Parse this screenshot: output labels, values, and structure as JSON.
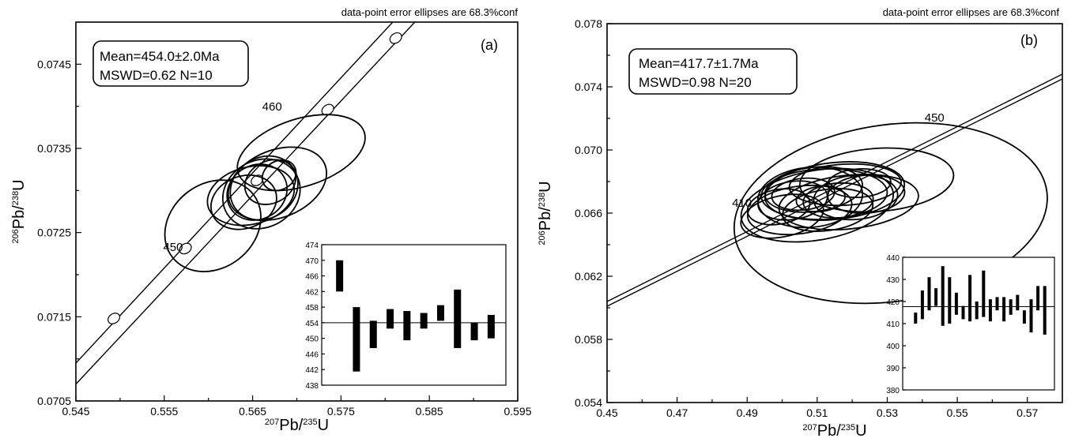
{
  "chart_data": [
    {
      "panel_label": "(a)",
      "type": "scatter",
      "subtype": "concordia-error-ellipses",
      "header_note": "data-point error ellipses are 68.3%conf",
      "xlabel_sup": "207",
      "xlabel_main": "Pb/",
      "xlabel_sup2": "235",
      "xlabel_tail": "U",
      "ylabel_sup": "206",
      "ylabel_main": "Pb/",
      "ylabel_sup2": "238",
      "ylabel_tail": "U",
      "xlim": [
        0.545,
        0.595
      ],
      "ylim": [
        0.0705,
        0.075
      ],
      "xticks": [
        "0.545",
        "0.555",
        "0.565",
        "0.575",
        "0.585",
        "0.595"
      ],
      "yticks": [
        "0.0705",
        "0.0715",
        "0.0725",
        "0.0735",
        "0.0745"
      ],
      "result_line1": "Mean=454.0±2.0Ma",
      "result_line2": "MSWD=0.62   N=10",
      "age_labels": [
        {
          "text": "460",
          "x": 0.5672,
          "y": 0.07395
        },
        {
          "text": "450",
          "x": 0.556,
          "y": 0.07228
        }
      ],
      "concordia_markers": [
        {
          "x": 0.5493,
          "y": 0.07148
        },
        {
          "x": 0.5574,
          "y": 0.07231
        },
        {
          "x": 0.5655,
          "y": 0.07312
        },
        {
          "x": 0.5735,
          "y": 0.07396
        },
        {
          "x": 0.5812,
          "y": 0.07481
        }
      ],
      "ellipses": [
        {
          "cx": 0.5605,
          "cy": 0.07258,
          "rx": 0.0058,
          "ry": 0.0005,
          "angle_deg": 38
        },
        {
          "cx": 0.5655,
          "cy": 0.07298,
          "rx": 0.0035,
          "ry": 0.00032,
          "angle_deg": 30
        },
        {
          "cx": 0.5663,
          "cy": 0.07303,
          "rx": 0.004,
          "ry": 0.00036,
          "angle_deg": 34
        },
        {
          "cx": 0.5678,
          "cy": 0.07308,
          "rx": 0.0058,
          "ry": 0.0004,
          "angle_deg": 22
        },
        {
          "cx": 0.5648,
          "cy": 0.07294,
          "rx": 0.005,
          "ry": 0.00034,
          "angle_deg": 14
        },
        {
          "cx": 0.567,
          "cy": 0.0731,
          "rx": 0.003,
          "ry": 0.00025,
          "angle_deg": 28
        },
        {
          "cx": 0.568,
          "cy": 0.07318,
          "rx": 0.002,
          "ry": 0.00017,
          "angle_deg": 30
        },
        {
          "cx": 0.564,
          "cy": 0.07286,
          "rx": 0.0038,
          "ry": 0.00031,
          "angle_deg": 20
        },
        {
          "cx": 0.566,
          "cy": 0.07296,
          "rx": 0.0045,
          "ry": 0.0004,
          "angle_deg": 26
        },
        {
          "cx": 0.5705,
          "cy": 0.07345,
          "rx": 0.0075,
          "ry": 0.0004,
          "angle_deg": 18
        }
      ],
      "inset": {
        "type": "bar",
        "ylim": [
          438,
          474
        ],
        "yticks": [
          "438",
          "442",
          "446",
          "450",
          "454",
          "458",
          "462",
          "466",
          "470",
          "474"
        ],
        "mean": 454.0,
        "bars": [
          [
            462,
            470
          ],
          [
            441.5,
            458
          ],
          [
            447.5,
            454.5
          ],
          [
            452.5,
            457.5
          ],
          [
            449.5,
            457
          ],
          [
            452.5,
            456.5
          ],
          [
            454.5,
            458.5
          ],
          [
            447.5,
            462.5
          ],
          [
            449.5,
            454
          ],
          [
            450,
            456
          ]
        ]
      }
    },
    {
      "panel_label": "(b)",
      "type": "scatter",
      "subtype": "concordia-error-ellipses",
      "header_note": "data-point error ellipses are 68.3%conf",
      "xlabel_sup": "207",
      "xlabel_main": "Pb/",
      "xlabel_sup2": "235",
      "xlabel_tail": "U",
      "ylabel_sup": "206",
      "ylabel_main": "Pb/",
      "ylabel_sup2": "238",
      "ylabel_tail": "U",
      "xlim": [
        0.45,
        0.58
      ],
      "ylim": [
        0.054,
        0.078
      ],
      "xticks": [
        "0.45",
        "0.47",
        "0.49",
        "0.51",
        "0.53",
        "0.55",
        "0.57"
      ],
      "yticks": [
        "0.054",
        "0.058",
        "0.062",
        "0.066",
        "0.070",
        "0.074",
        "0.078"
      ],
      "result_line1": "Mean=417.7±1.7Ma",
      "result_line2": "MSWD=0.98    N=20",
      "age_labels": [
        {
          "text": "450",
          "x": 0.5435,
          "y": 0.0718
        },
        {
          "text": "410",
          "x": 0.4885,
          "y": 0.0664
        }
      ],
      "ellipses": [
        {
          "cx": 0.531,
          "cy": 0.066,
          "rx": 0.045,
          "ry": 0.0056,
          "angle_deg": 8
        },
        {
          "cx": 0.527,
          "cy": 0.0681,
          "rx": 0.022,
          "ry": 0.002,
          "angle_deg": 4
        },
        {
          "cx": 0.519,
          "cy": 0.0667,
          "rx": 0.02,
          "ry": 0.0017,
          "angle_deg": 6
        },
        {
          "cx": 0.51,
          "cy": 0.0665,
          "rx": 0.022,
          "ry": 0.0022,
          "angle_deg": 10
        },
        {
          "cx": 0.508,
          "cy": 0.067,
          "rx": 0.015,
          "ry": 0.0019,
          "angle_deg": 5
        },
        {
          "cx": 0.512,
          "cy": 0.0672,
          "rx": 0.018,
          "ry": 0.0016,
          "angle_deg": 2
        },
        {
          "cx": 0.505,
          "cy": 0.0662,
          "rx": 0.015,
          "ry": 0.0015,
          "angle_deg": 8
        },
        {
          "cx": 0.515,
          "cy": 0.0674,
          "rx": 0.02,
          "ry": 0.0018,
          "angle_deg": 6
        },
        {
          "cx": 0.5,
          "cy": 0.0658,
          "rx": 0.012,
          "ry": 0.0013,
          "angle_deg": 12
        },
        {
          "cx": 0.518,
          "cy": 0.0678,
          "rx": 0.016,
          "ry": 0.0013,
          "angle_deg": 3
        },
        {
          "cx": 0.509,
          "cy": 0.0675,
          "rx": 0.014,
          "ry": 0.0014,
          "angle_deg": 7
        },
        {
          "cx": 0.503,
          "cy": 0.0668,
          "rx": 0.01,
          "ry": 0.0012,
          "angle_deg": 9
        },
        {
          "cx": 0.521,
          "cy": 0.067,
          "rx": 0.012,
          "ry": 0.0014,
          "angle_deg": 5
        },
        {
          "cx": 0.513,
          "cy": 0.0662,
          "rx": 0.013,
          "ry": 0.0013,
          "angle_deg": 8
        },
        {
          "cx": 0.506,
          "cy": 0.0672,
          "rx": 0.009,
          "ry": 0.001,
          "angle_deg": 6
        },
        {
          "cx": 0.516,
          "cy": 0.0668,
          "rx": 0.01,
          "ry": 0.0011,
          "angle_deg": 4
        },
        {
          "cx": 0.522,
          "cy": 0.0679,
          "rx": 0.009,
          "ry": 0.0009,
          "angle_deg": 3
        },
        {
          "cx": 0.511,
          "cy": 0.0669,
          "rx": 0.007,
          "ry": 0.0008,
          "angle_deg": 7
        },
        {
          "cx": 0.499,
          "cy": 0.0664,
          "rx": 0.009,
          "ry": 0.0011,
          "angle_deg": 10
        },
        {
          "cx": 0.524,
          "cy": 0.0672,
          "rx": 0.011,
          "ry": 0.0012,
          "angle_deg": 4
        }
      ],
      "inset": {
        "type": "bar",
        "ylim": [
          380,
          440
        ],
        "yticks": [
          "380",
          "390",
          "400",
          "410",
          "420",
          "430",
          "440"
        ],
        "mean": 417.7,
        "bars": [
          [
            410,
            415
          ],
          [
            412,
            425
          ],
          [
            416,
            431
          ],
          [
            418,
            426
          ],
          [
            409,
            436
          ],
          [
            410,
            431
          ],
          [
            414,
            424
          ],
          [
            412,
            418
          ],
          [
            411,
            432
          ],
          [
            412,
            420
          ],
          [
            413,
            434
          ],
          [
            411,
            421
          ],
          [
            416,
            422
          ],
          [
            411,
            422
          ],
          [
            414,
            421
          ],
          [
            416,
            423
          ],
          [
            410,
            416
          ],
          [
            406,
            421
          ],
          [
            416,
            427
          ],
          [
            405,
            427
          ]
        ]
      }
    }
  ]
}
